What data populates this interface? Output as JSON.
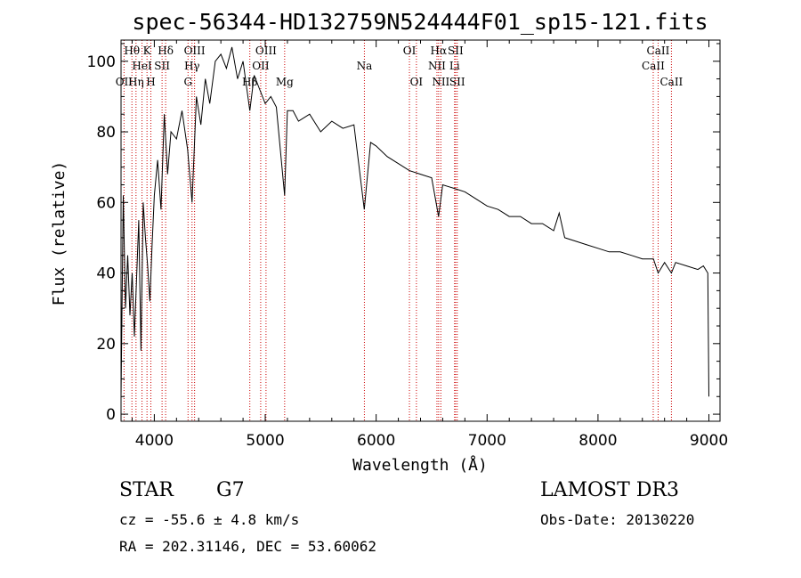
{
  "chart_data": {
    "type": "line",
    "title": "spec-56344-HD132759N524444F01_sp15-121.fits",
    "xlabel": "Wavelength (Å)",
    "ylabel": "Flux (relative)",
    "xlim": [
      3700,
      9100
    ],
    "ylim": [
      -2,
      106
    ],
    "xticks": [
      4000,
      5000,
      6000,
      7000,
      8000,
      9000
    ],
    "yticks": [
      0,
      20,
      40,
      60,
      80,
      100
    ],
    "series": [
      {
        "name": "flux",
        "x": [
          3700,
          3720,
          3740,
          3760,
          3780,
          3800,
          3820,
          3840,
          3860,
          3880,
          3900,
          3920,
          3940,
          3960,
          3980,
          4000,
          4030,
          4060,
          4090,
          4120,
          4150,
          4200,
          4250,
          4300,
          4340,
          4380,
          4420,
          4460,
          4500,
          4550,
          4600,
          4650,
          4700,
          4750,
          4800,
          4861,
          4900,
          4950,
          5000,
          5050,
          5100,
          5175,
          5200,
          5250,
          5300,
          5400,
          5500,
          5600,
          5700,
          5800,
          5893,
          5950,
          6000,
          6100,
          6200,
          6300,
          6400,
          6500,
          6563,
          6600,
          6700,
          6800,
          6900,
          7000,
          7100,
          7200,
          7300,
          7400,
          7500,
          7600,
          7650,
          7700,
          7800,
          7900,
          8000,
          8100,
          8200,
          8300,
          8400,
          8500,
          8542,
          8600,
          8662,
          8700,
          8800,
          8900,
          8950,
          8990,
          9000
        ],
        "y": [
          5,
          62,
          30,
          45,
          28,
          40,
          22,
          38,
          55,
          18,
          60,
          50,
          42,
          32,
          48,
          62,
          72,
          58,
          85,
          68,
          80,
          78,
          86,
          75,
          60,
          90,
          82,
          95,
          88,
          100,
          102,
          98,
          104,
          95,
          100,
          86,
          96,
          92,
          88,
          90,
          87,
          62,
          86,
          86,
          83,
          85,
          80,
          83,
          81,
          82,
          58,
          77,
          76,
          73,
          71,
          69,
          68,
          67,
          56,
          65,
          64,
          63,
          61,
          59,
          58,
          56,
          56,
          54,
          54,
          52,
          57,
          50,
          49,
          48,
          47,
          46,
          46,
          45,
          44,
          44,
          40,
          43,
          40,
          43,
          42,
          41,
          42,
          40,
          5
        ]
      }
    ],
    "line_markers": [
      {
        "label": "Hθ",
        "x": 3798,
        "row": 1
      },
      {
        "label": "OII",
        "x": 3727,
        "row": 3
      },
      {
        "label": "Hη",
        "x": 3835,
        "row": 3
      },
      {
        "label": "HeI",
        "x": 3889,
        "row": 2
      },
      {
        "label": "K",
        "x": 3934,
        "row": 1
      },
      {
        "label": "H",
        "x": 3969,
        "row": 3
      },
      {
        "label": "SII",
        "x": 4070,
        "row": 2
      },
      {
        "label": "Hδ",
        "x": 4102,
        "row": 1
      },
      {
        "label": "G",
        "x": 4304,
        "row": 3
      },
      {
        "label": "Hγ",
        "x": 4340,
        "row": 2
      },
      {
        "label": "OIII",
        "x": 4363,
        "row": 1
      },
      {
        "label": "Hβ",
        "x": 4861,
        "row": 3
      },
      {
        "label": "OII",
        "x": 4959,
        "row": 2
      },
      {
        "label": "OIII",
        "x": 5007,
        "row": 1
      },
      {
        "label": "Mg",
        "x": 5175,
        "row": 3
      },
      {
        "label": "Na",
        "x": 5894,
        "row": 2
      },
      {
        "label": "OI",
        "x": 6300,
        "row": 1
      },
      {
        "label": "OI",
        "x": 6363,
        "row": 3
      },
      {
        "label": "NII",
        "x": 6548,
        "row": 2
      },
      {
        "label": "Hα",
        "x": 6563,
        "row": 1
      },
      {
        "label": "NII",
        "x": 6583,
        "row": 3
      },
      {
        "label": "Li",
        "x": 6707,
        "row": 2
      },
      {
        "label": "SII",
        "x": 6716,
        "row": 1
      },
      {
        "label": "SII",
        "x": 6731,
        "row": 3
      },
      {
        "label": "CaII",
        "x": 8498,
        "row": 2
      },
      {
        "label": "CaII",
        "x": 8542,
        "row": 1
      },
      {
        "label": "CaII",
        "x": 8662,
        "row": 3
      }
    ],
    "colors": {
      "spectrum": "#000000",
      "markers": "#cc0000"
    }
  },
  "info": {
    "object_class": "STAR",
    "subclass": "G7",
    "survey": "LAMOST DR3",
    "cz": "cz = -55.6 ± 4.8 km/s",
    "obs_date": "Obs-Date: 20130220",
    "coords": "RA = 202.31146, DEC =  53.60062"
  }
}
